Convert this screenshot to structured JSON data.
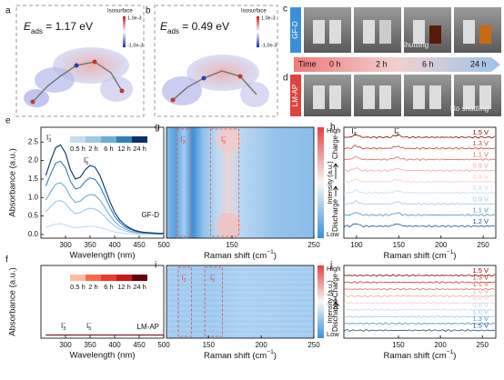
{
  "panels": {
    "a": {
      "label": "a",
      "energy": {
        "base": "E",
        "sub": "ads",
        "end": " = 1.17 eV"
      },
      "iso_title": "Isosurface",
      "iso_max": "1.0e-3",
      "iso_min": "-1.0e-3"
    },
    "b": {
      "label": "b",
      "energy": {
        "base": "E",
        "sub": "ads",
        "end": " = 0.49  eV"
      },
      "iso_title": "Isosurface",
      "iso_max": "1.0e-3",
      "iso_min": "-1.0e-3"
    },
    "c": {
      "label": "c",
      "sample": "GF-D",
      "note": "Shuttling"
    },
    "time": {
      "title": "Time",
      "marks": [
        "0 h",
        "2 h",
        "6 h",
        "24 h"
      ]
    },
    "d": {
      "label": "d",
      "sample": "LM-AP",
      "note": "No shuttling"
    }
  },
  "chart_data": [
    {
      "type": "line",
      "label": "e",
      "xlabel": "Wavelength (nm)",
      "ylabel": "Absorbance (a.u.)",
      "annotation": "GF-D",
      "x": [
        260,
        270,
        280,
        290,
        300,
        310,
        320,
        330,
        340,
        350,
        360,
        370,
        380,
        390,
        400,
        410,
        420,
        430,
        440,
        450,
        460,
        470,
        480,
        490,
        500
      ],
      "xlim": [
        250,
        500
      ],
      "xticks": [
        300,
        350,
        400,
        450,
        500
      ],
      "ylim": [
        -0.1,
        2.9
      ],
      "yticks": [
        {
          "value": 0,
          "label": "0.0"
        },
        {
          "value": 0.5,
          "label": "0.5"
        },
        {
          "value": 1,
          "label": "1.0"
        },
        {
          "value": 1.5,
          "label": "1.5"
        },
        {
          "value": 2,
          "label": "2.0"
        },
        {
          "value": 2.5,
          "label": "2.5"
        }
      ],
      "peaks": [
        {
          "base": "I",
          "sub": "3",
          "sup": "−"
        },
        {
          "base": "I",
          "sub": "5",
          "sup": "−"
        }
      ],
      "series": [
        {
          "name": "0.5 h",
          "color": "#c6dbef",
          "values": [
            0.19,
            0.24,
            0.28,
            0.29,
            0.26,
            0.21,
            0.18,
            0.19,
            0.21,
            0.22,
            0.22,
            0.19,
            0.15,
            0.11,
            0.07,
            0.05,
            0.03,
            0.02,
            0.01,
            0.01,
            0.01,
            0.01,
            0.0,
            0.0,
            0.0
          ]
        },
        {
          "name": "2 h",
          "color": "#9ecae1",
          "values": [
            0.61,
            0.76,
            0.89,
            0.92,
            0.84,
            0.67,
            0.57,
            0.59,
            0.67,
            0.71,
            0.69,
            0.61,
            0.48,
            0.34,
            0.23,
            0.15,
            0.1,
            0.07,
            0.05,
            0.03,
            0.02,
            0.02,
            0.02,
            0.01,
            0.01
          ]
        },
        {
          "name": "6 h",
          "color": "#6baed6",
          "values": [
            0.93,
            1.16,
            1.36,
            1.4,
            1.28,
            1.02,
            0.87,
            0.9,
            1.02,
            1.08,
            1.06,
            0.93,
            0.73,
            0.52,
            0.35,
            0.23,
            0.16,
            0.1,
            0.07,
            0.05,
            0.03,
            0.03,
            0.02,
            0.02,
            0.02
          ]
        },
        {
          "name": "12 h",
          "color": "#2f7fb8",
          "values": [
            1.31,
            1.64,
            1.93,
            1.98,
            1.8,
            1.44,
            1.23,
            1.27,
            1.44,
            1.53,
            1.49,
            1.31,
            1.03,
            0.74,
            0.49,
            0.33,
            0.22,
            0.15,
            0.1,
            0.07,
            0.05,
            0.04,
            0.03,
            0.02,
            0.02
          ]
        },
        {
          "name": "24 h",
          "color": "#08306b",
          "values": [
            1.6,
            2.0,
            2.35,
            2.42,
            2.2,
            1.75,
            1.5,
            1.55,
            1.75,
            1.87,
            1.82,
            1.6,
            1.25,
            0.9,
            0.6,
            0.4,
            0.27,
            0.18,
            0.12,
            0.08,
            0.06,
            0.05,
            0.04,
            0.03,
            0.03
          ]
        }
      ]
    },
    {
      "type": "line",
      "label": "f",
      "xlabel": "Wavelength (nm)",
      "ylabel": "Absorbance (a.u.)",
      "annotation": "LM-AP",
      "x": [
        260,
        500
      ],
      "xlim": [
        250,
        500
      ],
      "xticks": [
        300,
        350,
        400,
        450,
        500
      ],
      "ylim": [
        -0.1,
        2.9
      ],
      "peaks": [
        {
          "base": "I",
          "sub": "3",
          "sup": "−"
        },
        {
          "base": "I",
          "sub": "5",
          "sup": "−"
        }
      ],
      "series": [
        {
          "name": "0.5 h",
          "color": "#fcbba1",
          "values": [
            0.03,
            0.03
          ]
        },
        {
          "name": "2 h",
          "color": "#fb6a4a",
          "values": [
            0.03,
            0.03
          ]
        },
        {
          "name": "6 h",
          "color": "#ef3b2c",
          "values": [
            0.03,
            0.03
          ]
        },
        {
          "name": "12 h",
          "color": "#cb181d",
          "values": [
            0.03,
            0.03
          ]
        },
        {
          "name": "24 h",
          "color": "#67000d",
          "values": [
            0.03,
            0.03
          ]
        }
      ]
    },
    {
      "type": "heatmap",
      "label": "g",
      "xlim": [
        70,
        250
      ],
      "xticks": [
        150,
        250
      ],
      "xlabel": {
        "main": "Raman shift (cm",
        "sup": "−1",
        "end": ")"
      },
      "colorbar": {
        "title": "Intensity (a.u.)",
        "high": "High",
        "low": "Low"
      },
      "peaks": [
        {
          "base": "I",
          "sub": "3",
          "sup": "−"
        },
        {
          "base": "I",
          "sub": "5",
          "sup": "−"
        }
      ]
    },
    {
      "type": "spectra",
      "label": "h",
      "xlim": [
        85,
        265
      ],
      "xticks": [
        100,
        150,
        200,
        250
      ],
      "xlabel": {
        "main": "Raman shift (cm",
        "sup": "−1",
        "end": ")"
      },
      "charge": "Charge",
      "discharge": "Discharge",
      "peaks": [
        {
          "base": "I",
          "sub": "3",
          "sup": "−"
        },
        {
          "base": "I",
          "sub": "5",
          "sup": "−"
        }
      ],
      "series": [
        {
          "name": "1.5 V",
          "color": "#8b0000"
        },
        {
          "name": "1.3 V",
          "color": "#c0392b"
        },
        {
          "name": "1.1 V",
          "color": "#e06666"
        },
        {
          "name": "0.9 V",
          "color": "#f4a6a6"
        },
        {
          "name": "0.8 V",
          "color": "#f8cccc"
        },
        {
          "name": "0.8 V",
          "color": "#c6dbef"
        },
        {
          "name": "0.9 V",
          "color": "#9ecae1"
        },
        {
          "name": "1.1 V",
          "color": "#4a90c2"
        },
        {
          "name": "1.2 V",
          "color": "#1f4e8c"
        }
      ]
    },
    {
      "type": "heatmap",
      "label": "i",
      "xlim": [
        110,
        250
      ],
      "xticks": [
        150,
        200,
        250
      ],
      "xlabel": {
        "main": "Raman shift (cm",
        "sup": "−1",
        "end": ")"
      },
      "colorbar": {
        "title": "Intensity (a.u.)",
        "high": "High",
        "low": "Low"
      },
      "peaks": [
        {
          "base": "I",
          "sub": "3",
          "sup": "−"
        },
        {
          "base": "I",
          "sub": "5",
          "sup": "−"
        }
      ]
    },
    {
      "type": "spectra",
      "label": "j",
      "xlim": [
        85,
        266
      ],
      "xticks": [
        150,
        200,
        250
      ],
      "xlabel": {
        "main": "Raman shift (cm",
        "sup": "−1",
        "end": ")"
      },
      "charge": "Charge",
      "discharge": "Discharge",
      "series": [
        {
          "name": "1.5 V",
          "color": "#8b0000"
        },
        {
          "name": "1.3 V",
          "color": "#c0392b"
        },
        {
          "name": "1.1 V",
          "color": "#e06666"
        },
        {
          "name": "1.0 V",
          "color": "#f4a6a6"
        },
        {
          "name": "0.8 V",
          "color": "#f8cccc"
        },
        {
          "name": "0.8 V",
          "color": "#c6dbef"
        },
        {
          "name": "1.0 V",
          "color": "#9ecae1"
        },
        {
          "name": "1.3 V",
          "color": "#4a90c2"
        },
        {
          "name": "1.5 V",
          "color": "#1f4e8c"
        }
      ]
    }
  ]
}
